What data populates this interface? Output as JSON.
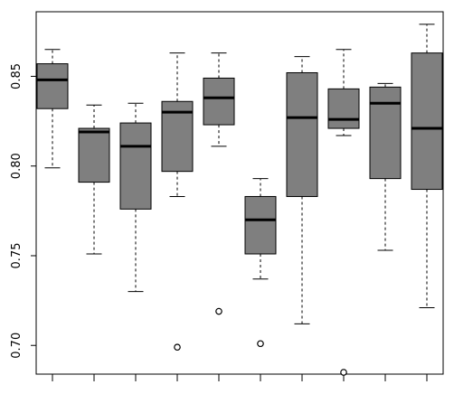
{
  "chart_data": {
    "type": "boxplot",
    "title": "",
    "xlabel": "",
    "ylabel": "",
    "ylim": [
      0.684,
      0.886
    ],
    "yticks": [
      0.7,
      0.75,
      0.8,
      0.85
    ],
    "ytick_labels": [
      "0.70",
      "0.75",
      "0.80",
      "0.85"
    ],
    "x_tick_count": 10,
    "x_tick_labels": [],
    "box_fill": "#7f7f7f",
    "box_stroke": "#000000",
    "boxes": [
      {
        "whisker_low": 0.799,
        "q1": 0.832,
        "median": 0.848,
        "q3": 0.857,
        "whisker_high": 0.865,
        "outliers": []
      },
      {
        "whisker_low": 0.751,
        "q1": 0.791,
        "median": 0.819,
        "q3": 0.821,
        "whisker_high": 0.834,
        "outliers": []
      },
      {
        "whisker_low": 0.73,
        "q1": 0.776,
        "median": 0.811,
        "q3": 0.824,
        "whisker_high": 0.835,
        "outliers": []
      },
      {
        "whisker_low": 0.783,
        "q1": 0.797,
        "median": 0.83,
        "q3": 0.836,
        "whisker_high": 0.863,
        "outliers": [
          0.699
        ]
      },
      {
        "whisker_low": 0.811,
        "q1": 0.823,
        "median": 0.838,
        "q3": 0.849,
        "whisker_high": 0.863,
        "outliers": [
          0.719
        ]
      },
      {
        "whisker_low": 0.737,
        "q1": 0.751,
        "median": 0.77,
        "q3": 0.783,
        "whisker_high": 0.793,
        "outliers": [
          0.701
        ]
      },
      {
        "whisker_low": 0.712,
        "q1": 0.783,
        "median": 0.827,
        "q3": 0.852,
        "whisker_high": 0.861,
        "outliers": []
      },
      {
        "whisker_low": 0.817,
        "q1": 0.821,
        "median": 0.826,
        "q3": 0.843,
        "whisker_high": 0.865,
        "outliers": [
          0.685
        ]
      },
      {
        "whisker_low": 0.753,
        "q1": 0.793,
        "median": 0.835,
        "q3": 0.844,
        "whisker_high": 0.846,
        "outliers": []
      },
      {
        "whisker_low": 0.721,
        "q1": 0.787,
        "median": 0.821,
        "q3": 0.863,
        "whisker_high": 0.879,
        "outliers": []
      }
    ]
  }
}
